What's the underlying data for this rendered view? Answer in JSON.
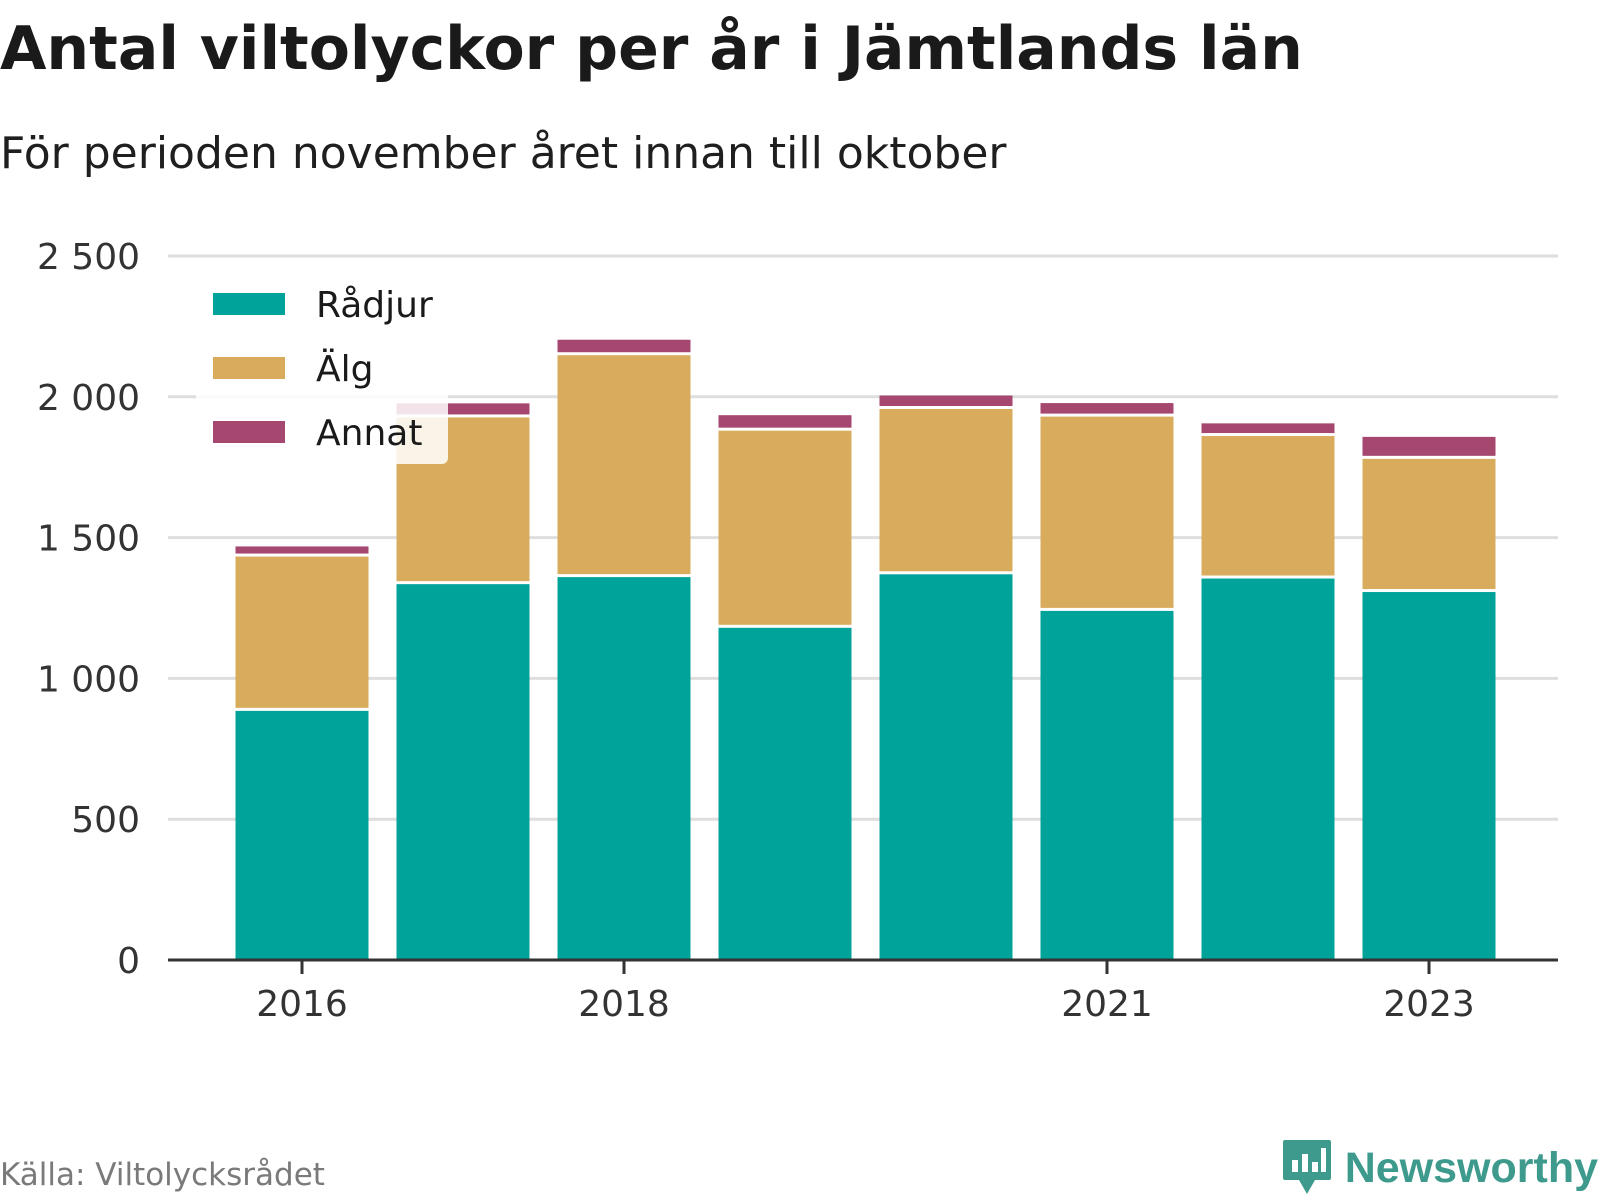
{
  "title": "Antal viltolyckor per år i Jämtlands län",
  "subtitle": "För perioden november året innan till oktober",
  "source": "Källa: Viltolycksrådet",
  "brand": {
    "name": "Newsworthy",
    "logo_icon": "newsworthy-logo-icon"
  },
  "colors": {
    "Rådjur": "#00a39a",
    "Älg": "#d9ac5d",
    "Annat": "#a64770",
    "grid": "#dedede",
    "axis": "#333333"
  },
  "chart_data": {
    "type": "bar",
    "stacked": true,
    "categories": [
      "2016",
      "2017",
      "2018",
      "2019",
      "2020",
      "2021",
      "2022",
      "2023"
    ],
    "x_tick_labels": [
      "2016",
      "",
      "2018",
      "",
      "",
      "2021",
      "",
      "2023"
    ],
    "series": [
      {
        "name": "Rådjur",
        "values": [
          890,
          1340,
          1365,
          1185,
          1375,
          1245,
          1360,
          1312
        ]
      },
      {
        "name": "Älg",
        "values": [
          548,
          592,
          788,
          700,
          587,
          690,
          506,
          473
        ]
      },
      {
        "name": "Annat",
        "values": [
          36,
          50,
          55,
          55,
          48,
          48,
          45,
          78
        ]
      }
    ],
    "y_ticks": [
      0,
      500,
      1000,
      1500,
      2000,
      2500
    ],
    "y_tick_labels": [
      "0",
      "500",
      "1 000",
      "1 500",
      "2 000",
      "2 500"
    ],
    "ylim": [
      0,
      2500
    ],
    "grid": true,
    "legend_position": "top-left",
    "xlabel": "",
    "ylabel": ""
  }
}
